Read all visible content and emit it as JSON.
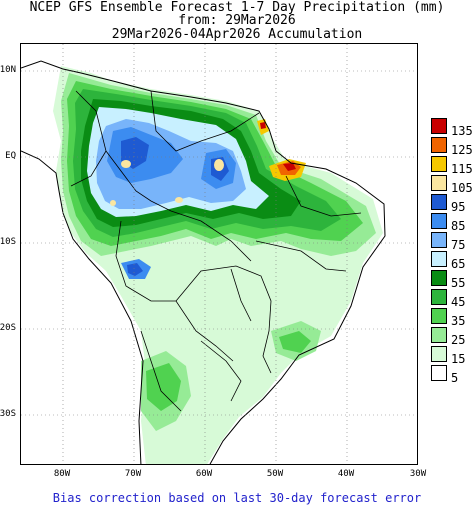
{
  "title": {
    "line1": "NCEP GFS Ensemble Forecast 1-7 Day Precipitation (mm)",
    "line2": "from: 29Mar2026",
    "line3": "29Mar2026-04Apr2026 Accumulation"
  },
  "axes": {
    "latitude_labels": [
      "10N",
      "EQ",
      "10S",
      "20S",
      "30S"
    ],
    "longitude_labels": [
      "80W",
      "70W",
      "60W",
      "50W",
      "40W",
      "30W"
    ]
  },
  "legend": {
    "levels": [
      {
        "value": "135",
        "color": "#c80000"
      },
      {
        "value": "125",
        "color": "#f06400"
      },
      {
        "value": "115",
        "color": "#f5c800"
      },
      {
        "value": "105",
        "color": "#fae6a0"
      },
      {
        "value": "95",
        "color": "#1e5ad2"
      },
      {
        "value": "85",
        "color": "#3c8cf0"
      },
      {
        "value": "75",
        "color": "#78b4fa"
      },
      {
        "value": "65",
        "color": "#c8f0ff"
      },
      {
        "value": "55",
        "color": "#0a8c14"
      },
      {
        "value": "45",
        "color": "#2db43c"
      },
      {
        "value": "35",
        "color": "#50d250"
      },
      {
        "value": "25",
        "color": "#96eb96"
      },
      {
        "value": "15",
        "color": "#d7fad7"
      },
      {
        "value": "5",
        "color": "#ffffff"
      }
    ]
  },
  "footer": "Bias correction based on last 30-day forecast error"
}
